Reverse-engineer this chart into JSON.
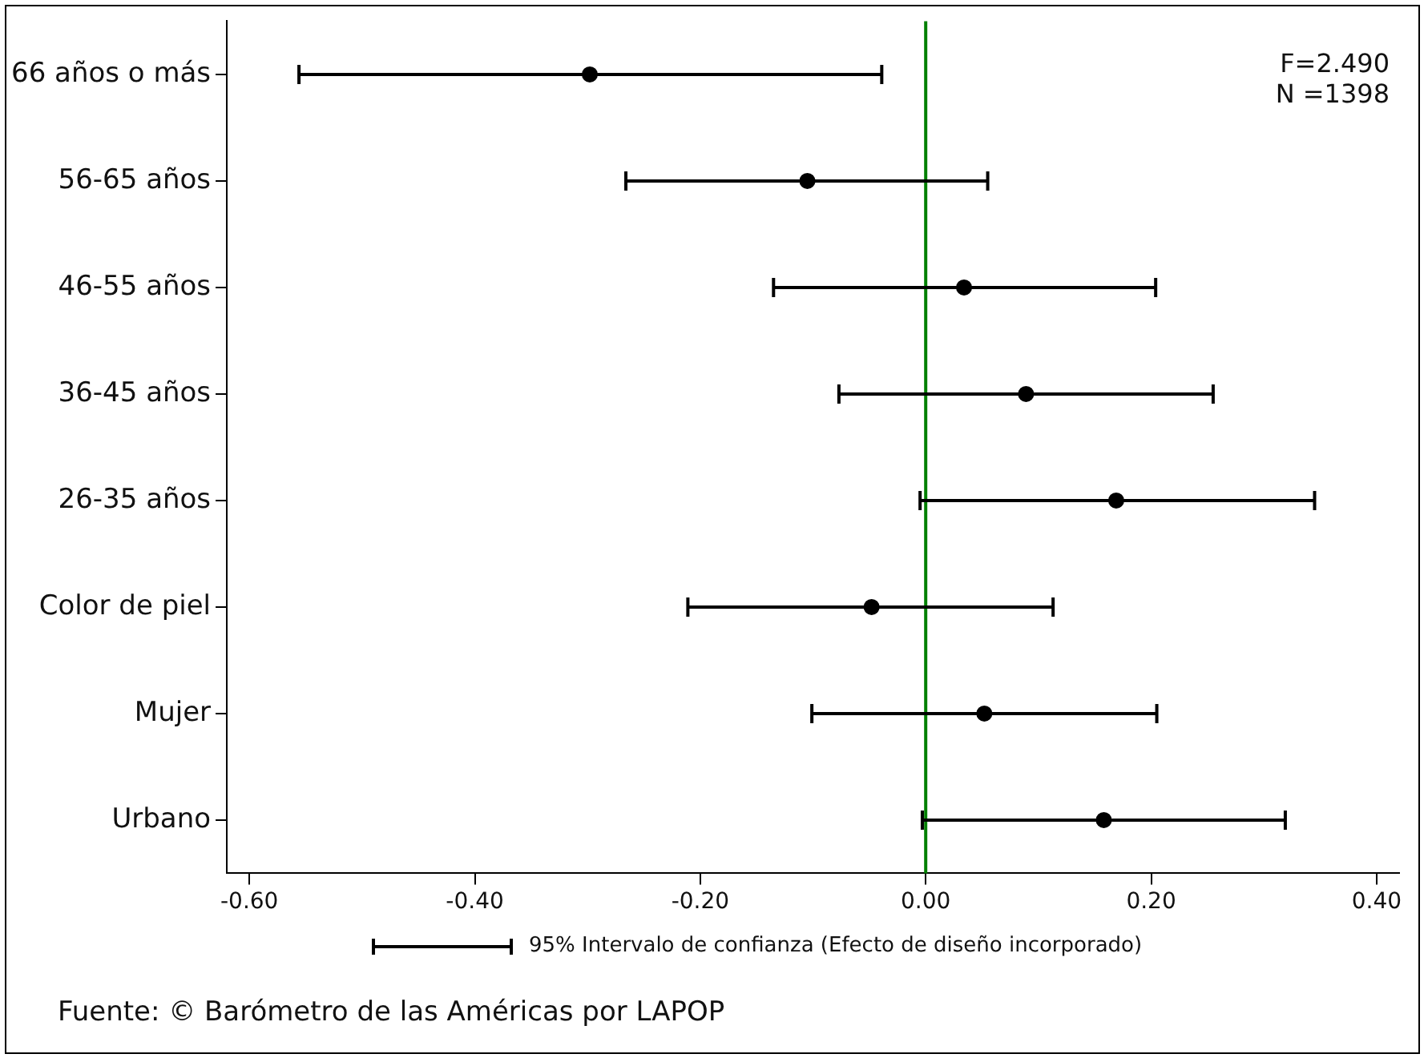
{
  "chart_data": {
    "type": "scatter",
    "orientation": "horizontal",
    "color": "#000000",
    "marker": "circle",
    "categories": [
      "66 años o más",
      "56-65 años",
      "46-55 años",
      "36-45 años",
      "26-35 años",
      "Color de piel",
      "Mujer",
      "Urbano"
    ],
    "values": [
      -0.298,
      -0.105,
      0.034,
      0.089,
      0.169,
      -0.048,
      0.052,
      0.158
    ],
    "errors": [
      [
        -0.556,
        -0.039
      ],
      [
        -0.266,
        0.055
      ],
      [
        -0.135,
        0.204
      ],
      [
        -0.077,
        0.255
      ],
      [
        -0.005,
        0.345
      ],
      [
        -0.211,
        0.113
      ],
      [
        -0.101,
        0.205
      ],
      [
        -0.003,
        0.319
      ]
    ],
    "xlim": [
      -0.62,
      0.42
    ],
    "xticks": [
      {
        "value": -0.6,
        "label": "-0.60"
      },
      {
        "value": -0.4,
        "label": "-0.40"
      },
      {
        "value": -0.2,
        "label": "-0.20"
      },
      {
        "value": 0,
        "label": "0.00"
      },
      {
        "value": 0.2,
        "label": "0.20"
      },
      {
        "value": 0.4,
        "label": "0.40"
      }
    ],
    "ref_lines": [
      {
        "axis": "x",
        "value": 0,
        "color": "#008000"
      }
    ],
    "annotations": [
      "F=2.490",
      "N =1398",
      "95% Intervalo de confianza (Efecto de diseño incorporado)",
      "Fuente: © Barómetro de las Américas por LAPOP"
    ]
  }
}
